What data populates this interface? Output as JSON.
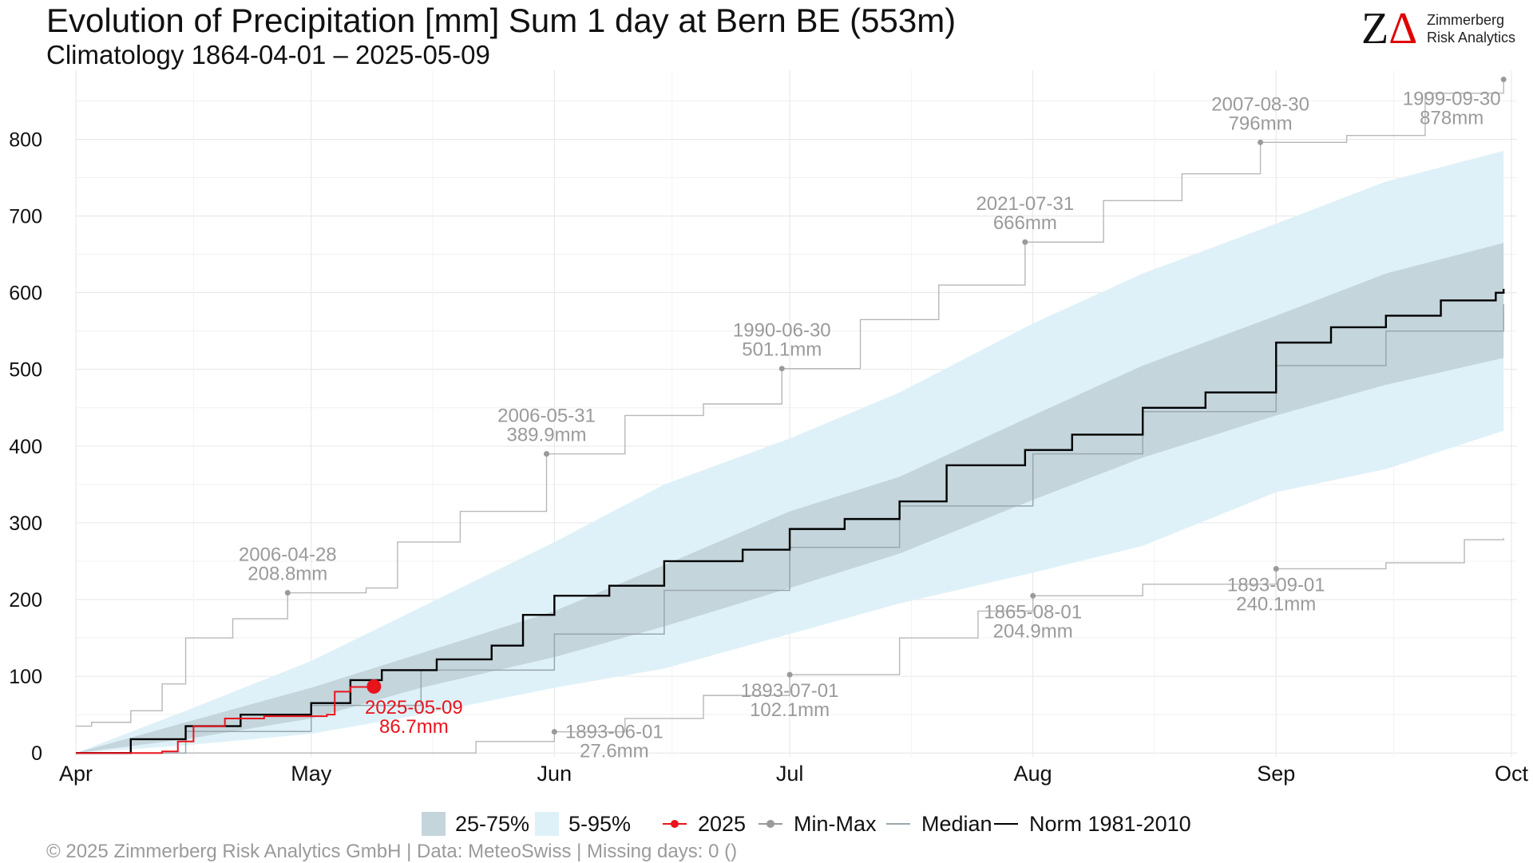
{
  "header": {
    "title": "Evolution of Precipitation [mm] Sum 1 day at Bern  BE (553m)",
    "subtitle": "Climatology 1864-04-01 – 2025-05-09"
  },
  "logo": {
    "mark_z": "Z",
    "mark_a": "Δ",
    "line1": "Zimmerberg",
    "line2": "Risk Analytics"
  },
  "footer": {
    "text": "©  2025 Zimmerberg Risk Analytics GmbH | Data: MeteoSwiss | Missing days: 0 ()"
  },
  "legend": {
    "items": [
      {
        "label": "25-75%",
        "kind": "box",
        "color": "#c4d5dc"
      },
      {
        "label": "5-95%",
        "kind": "box",
        "color": "#dff1f8"
      },
      {
        "label": "2025",
        "kind": "dot",
        "color": "#e8141c"
      },
      {
        "label": "Min-Max",
        "kind": "dot",
        "color": "#9a9a9a"
      },
      {
        "label": "Median",
        "kind": "line",
        "color": "#9aa7ae"
      },
      {
        "label": "Norm 1981-2010",
        "kind": "line",
        "color": "#000000"
      }
    ]
  },
  "chart_data": {
    "type": "line",
    "title": "Evolution of Precipitation [mm] Sum 1 day at Bern  BE (553m)",
    "subtitle": "Climatology 1864-04-01 – 2025-05-09",
    "x_ticks": [
      "Apr",
      "May",
      "Jun",
      "Jul",
      "Aug",
      "Sep",
      "Oct"
    ],
    "x_tick_dates": [
      "04-01",
      "05-01",
      "06-01",
      "07-01",
      "08-01",
      "09-01",
      "10-01"
    ],
    "xlim": [
      "04-01",
      "10-01"
    ],
    "y_ticks": [
      0,
      100,
      200,
      300,
      400,
      500,
      600,
      700,
      800
    ],
    "ylim": [
      -5,
      890
    ],
    "grid": true,
    "legend_position": "bottom",
    "colors": {
      "band_25_75": "#c4d5dc",
      "band_5_95": "#dff1f8",
      "current": "#e8141c",
      "minmax": "#b8b8b8",
      "minmax_points": "#9a9a9a",
      "median": "#9aa7ae",
      "norm": "#000000",
      "annotation": "#9a9a9a"
    },
    "bands": {
      "p05_p95": [
        {
          "x": "04-01",
          "low": 0,
          "high": 0
        },
        {
          "x": "04-15",
          "low": 10,
          "high": 55
        },
        {
          "x": "05-01",
          "low": 25,
          "high": 120
        },
        {
          "x": "05-15",
          "low": 50,
          "high": 190
        },
        {
          "x": "06-01",
          "low": 85,
          "high": 275
        },
        {
          "x": "06-15",
          "low": 110,
          "high": 350
        },
        {
          "x": "07-01",
          "low": 155,
          "high": 410
        },
        {
          "x": "07-15",
          "low": 195,
          "high": 470
        },
        {
          "x": "08-01",
          "low": 235,
          "high": 560
        },
        {
          "x": "08-15",
          "low": 270,
          "high": 625
        },
        {
          "x": "09-01",
          "low": 340,
          "high": 690
        },
        {
          "x": "09-15",
          "low": 370,
          "high": 745
        },
        {
          "x": "09-30",
          "low": 420,
          "high": 785
        }
      ],
      "p25_p75": [
        {
          "x": "04-01",
          "low": 0,
          "high": 0
        },
        {
          "x": "04-15",
          "low": 18,
          "high": 40
        },
        {
          "x": "05-01",
          "low": 45,
          "high": 85
        },
        {
          "x": "05-15",
          "low": 85,
          "high": 130
        },
        {
          "x": "06-01",
          "low": 125,
          "high": 185
        },
        {
          "x": "06-15",
          "low": 165,
          "high": 245
        },
        {
          "x": "07-01",
          "low": 215,
          "high": 315
        },
        {
          "x": "07-15",
          "low": 260,
          "high": 360
        },
        {
          "x": "08-01",
          "low": 330,
          "high": 440
        },
        {
          "x": "08-15",
          "low": 385,
          "high": 505
        },
        {
          "x": "09-01",
          "low": 440,
          "high": 570
        },
        {
          "x": "09-15",
          "low": 480,
          "high": 625
        },
        {
          "x": "09-30",
          "low": 515,
          "high": 665
        }
      ]
    },
    "series": [
      {
        "name": "Median",
        "points": [
          [
            "04-01",
            0
          ],
          [
            "04-15",
            28
          ],
          [
            "05-01",
            62
          ],
          [
            "05-15",
            108
          ],
          [
            "06-01",
            155
          ],
          [
            "06-15",
            212
          ],
          [
            "07-01",
            268
          ],
          [
            "07-15",
            322
          ],
          [
            "08-01",
            390
          ],
          [
            "08-15",
            445
          ],
          [
            "09-01",
            505
          ],
          [
            "09-15",
            550
          ],
          [
            "09-30",
            585
          ]
        ]
      },
      {
        "name": "Norm 1981-2010",
        "points": [
          [
            "04-01",
            0
          ],
          [
            "04-08",
            18
          ],
          [
            "04-15",
            35
          ],
          [
            "04-22",
            50
          ],
          [
            "05-01",
            65
          ],
          [
            "05-06",
            95
          ],
          [
            "05-10",
            108
          ],
          [
            "05-17",
            122
          ],
          [
            "05-24",
            140
          ],
          [
            "05-28",
            180
          ],
          [
            "06-01",
            205
          ],
          [
            "06-08",
            218
          ],
          [
            "06-15",
            250
          ],
          [
            "06-25",
            265
          ],
          [
            "07-01",
            292
          ],
          [
            "07-08",
            305
          ],
          [
            "07-15",
            328
          ],
          [
            "07-21",
            375
          ],
          [
            "07-31",
            395
          ],
          [
            "08-06",
            415
          ],
          [
            "08-15",
            450
          ],
          [
            "08-23",
            470
          ],
          [
            "09-01",
            535
          ],
          [
            "09-08",
            555
          ],
          [
            "09-15",
            570
          ],
          [
            "09-22",
            590
          ],
          [
            "09-29",
            600
          ],
          [
            "09-30",
            605
          ]
        ]
      },
      {
        "name": "2025",
        "points": [
          [
            "04-01",
            0
          ],
          [
            "04-12",
            2
          ],
          [
            "04-14",
            15
          ],
          [
            "04-16",
            35
          ],
          [
            "04-20",
            45
          ],
          [
            "04-25",
            48
          ],
          [
            "05-03",
            50
          ],
          [
            "05-04",
            80
          ],
          [
            "05-06",
            86
          ],
          [
            "05-09",
            86.7
          ]
        ]
      },
      {
        "name": "Max",
        "points": [
          [
            "04-01",
            35
          ],
          [
            "04-03",
            40
          ],
          [
            "04-08",
            55
          ],
          [
            "04-12",
            90
          ],
          [
            "04-15",
            150
          ],
          [
            "04-21",
            175
          ],
          [
            "04-28",
            208.8
          ],
          [
            "05-08",
            215
          ],
          [
            "05-12",
            275
          ],
          [
            "05-20",
            315
          ],
          [
            "05-31",
            389.9
          ],
          [
            "06-10",
            440
          ],
          [
            "06-20",
            455
          ],
          [
            "06-30",
            501.1
          ],
          [
            "07-10",
            565
          ],
          [
            "07-20",
            610
          ],
          [
            "07-31",
            666
          ],
          [
            "08-10",
            720
          ],
          [
            "08-20",
            755
          ],
          [
            "08-30",
            796
          ],
          [
            "09-10",
            805
          ],
          [
            "09-20",
            860
          ],
          [
            "09-30",
            878
          ]
        ]
      },
      {
        "name": "Min",
        "points": [
          [
            "04-01",
            0
          ],
          [
            "05-20",
            0
          ],
          [
            "05-22",
            15
          ],
          [
            "06-01",
            27.6
          ],
          [
            "06-10",
            45
          ],
          [
            "06-20",
            75
          ],
          [
            "07-01",
            102.1
          ],
          [
            "07-15",
            150
          ],
          [
            "07-25",
            185
          ],
          [
            "08-01",
            204.9
          ],
          [
            "08-15",
            220
          ],
          [
            "09-01",
            240.1
          ],
          [
            "09-15",
            248
          ],
          [
            "09-25",
            278
          ],
          [
            "09-30",
            280
          ]
        ]
      }
    ],
    "current_point": {
      "x": "05-09",
      "y": 86.7
    },
    "annotations": [
      {
        "date": "2006-04-28",
        "value": "208.8mm",
        "x": "04-28",
        "y": 208.8,
        "color": "gray",
        "pos": "above"
      },
      {
        "date": "2006-05-31",
        "value": "389.9mm",
        "x": "05-31",
        "y": 389.9,
        "color": "gray",
        "pos": "above"
      },
      {
        "date": "1990-06-30",
        "value": "501.1mm",
        "x": "06-30",
        "y": 501.1,
        "color": "gray",
        "pos": "above"
      },
      {
        "date": "2021-07-31",
        "value": "666mm",
        "x": "07-31",
        "y": 666,
        "color": "gray",
        "pos": "above"
      },
      {
        "date": "2007-08-30",
        "value": "796mm",
        "x": "08-30",
        "y": 796,
        "color": "gray",
        "pos": "above"
      },
      {
        "date": "1999-09-30",
        "value": "878mm",
        "x": "09-30",
        "y": 878,
        "color": "gray",
        "pos": "below-left"
      },
      {
        "date": "1893-06-01",
        "value": "27.6mm",
        "x": "06-01",
        "y": 27.6,
        "color": "gray",
        "pos": "right"
      },
      {
        "date": "1893-07-01",
        "value": "102.1mm",
        "x": "07-01",
        "y": 102.1,
        "color": "gray",
        "pos": "below"
      },
      {
        "date": "1865-08-01",
        "value": "204.9mm",
        "x": "08-01",
        "y": 204.9,
        "color": "gray",
        "pos": "below"
      },
      {
        "date": "1893-09-01",
        "value": "240.1mm",
        "x": "09-01",
        "y": 240.1,
        "color": "gray",
        "pos": "below"
      },
      {
        "date": "2025-05-09",
        "value": "86.7mm",
        "x": "05-09",
        "y": 86.7,
        "color": "red",
        "pos": "below"
      }
    ]
  }
}
